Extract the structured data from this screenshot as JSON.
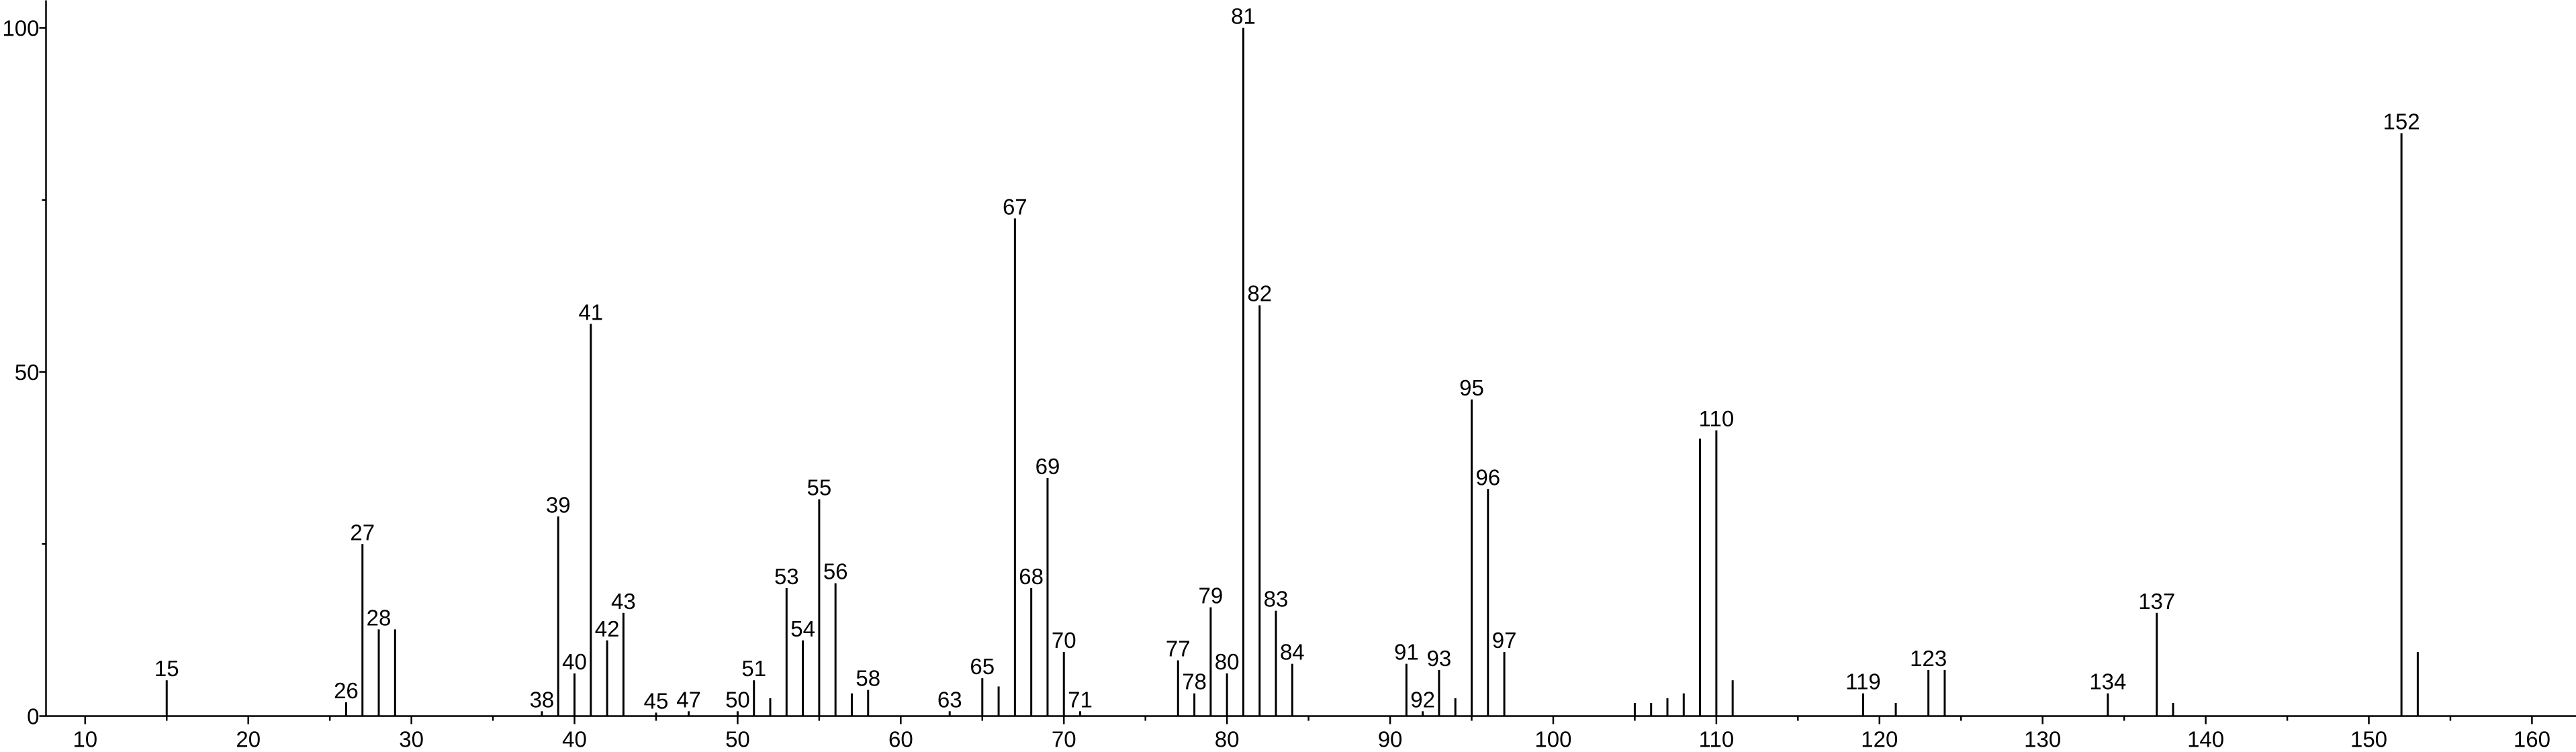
{
  "chart_data": {
    "type": "stem",
    "x": [
      15,
      26,
      27,
      28,
      29,
      38,
      39,
      40,
      41,
      42,
      43,
      45,
      47,
      50,
      51,
      52,
      53,
      54,
      55,
      56,
      57,
      58,
      63,
      65,
      66,
      67,
      68,
      69,
      70,
      71,
      77,
      78,
      79,
      80,
      81,
      82,
      83,
      84,
      91,
      92,
      93,
      94,
      95,
      96,
      97,
      105,
      106,
      107,
      108,
      109,
      110,
      111,
      119,
      121,
      123,
      124,
      134,
      137,
      138,
      152,
      153
    ],
    "values": [
      5.2,
      2,
      25,
      12.6,
      12.6,
      0.7,
      29,
      6.2,
      57,
      11,
      15,
      0.5,
      0.7,
      0.7,
      5.2,
      2.6,
      18.6,
      11,
      31.5,
      19.3,
      3.3,
      3.8,
      0.7,
      5.5,
      4.3,
      72.3,
      18.6,
      34.6,
      9.3,
      0.7,
      8.1,
      3.3,
      15.8,
      6.2,
      100,
      59.7,
      15.3,
      7.6,
      7.6,
      0.7,
      6.7,
      2.6,
      46,
      33,
      9.3,
      1.9,
      1.9,
      2.6,
      3.3,
      40.3,
      41.5,
      5.2,
      3.3,
      1.9,
      6.7,
      6.7,
      3.3,
      15,
      1.9,
      84.7,
      9.3
    ],
    "labeled": [
      true,
      true,
      true,
      true,
      false,
      true,
      true,
      true,
      true,
      true,
      true,
      true,
      true,
      true,
      true,
      false,
      true,
      true,
      true,
      true,
      false,
      true,
      true,
      true,
      false,
      true,
      true,
      true,
      true,
      true,
      true,
      true,
      true,
      true,
      true,
      true,
      true,
      true,
      true,
      true,
      true,
      false,
      true,
      true,
      true,
      false,
      false,
      false,
      false,
      false,
      true,
      false,
      true,
      false,
      true,
      false,
      true,
      true,
      false,
      true,
      false
    ],
    "color": "#000000",
    "xlim": [
      7.6,
      162.7
    ],
    "ylim": [
      0,
      104
    ],
    "xticks": [
      10,
      20,
      30,
      40,
      50,
      60,
      70,
      80,
      90,
      100,
      110,
      120,
      130,
      140,
      150,
      160
    ],
    "x_minor_ticks": [
      15,
      25,
      35,
      45,
      55,
      65,
      75,
      85,
      95,
      105,
      115,
      125,
      135,
      145,
      155
    ],
    "yticks": [
      0,
      50,
      100
    ],
    "y_minor_ticks": [
      25,
      75
    ]
  }
}
